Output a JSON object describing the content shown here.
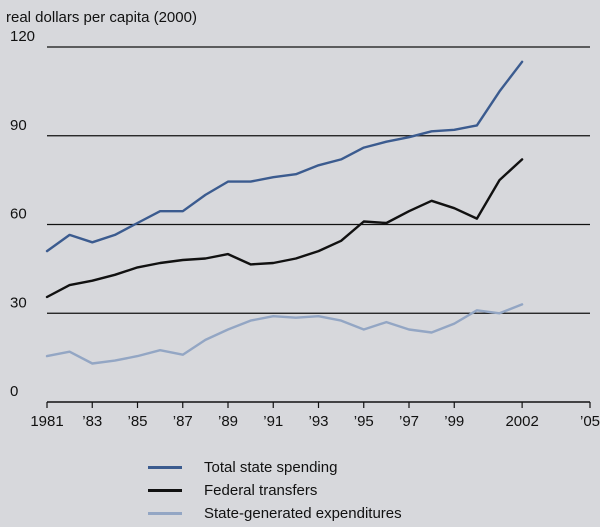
{
  "colors": {
    "total": "#3b5b8f",
    "federal": "#111111",
    "state": "#93a6c4",
    "grid": "#111111",
    "background": "#d7d8dc"
  },
  "chart_data": {
    "type": "line",
    "ylabel": "real dollars per capita (2000)",
    "ylim": [
      0,
      120
    ],
    "y_ticks": [
      0,
      30,
      60,
      90,
      120
    ],
    "y_tick_labels": [
      "0",
      "30",
      "60",
      "90",
      "120"
    ],
    "xlim": [
      1981,
      2005
    ],
    "x_ticks": [
      1981,
      1983,
      1985,
      1987,
      1989,
      1991,
      1993,
      1995,
      1997,
      1999,
      2002,
      2005
    ],
    "x_tick_labels": [
      "1981",
      "’83",
      "’85",
      "’87",
      "’89",
      "’91",
      "’93",
      "’95",
      "’97",
      "’99",
      "2002",
      "’05"
    ],
    "grid": "horizontal",
    "legend_position": "bottom",
    "x": [
      1981,
      1982,
      1983,
      1984,
      1985,
      1986,
      1987,
      1988,
      1989,
      1990,
      1991,
      1992,
      1993,
      1994,
      1995,
      1996,
      1997,
      1998,
      1999,
      2000,
      2001,
      2002
    ],
    "series": [
      {
        "key": "total",
        "name": "Total state spending",
        "values": [
          51,
          56.5,
          54,
          56.5,
          60.5,
          64.5,
          64.5,
          70,
          74.5,
          74.5,
          76,
          77,
          80,
          82,
          86,
          88,
          89.5,
          91.5,
          92,
          93.5,
          105,
          115
        ]
      },
      {
        "key": "federal",
        "name": "Federal transfers",
        "values": [
          35.5,
          39.5,
          41,
          43,
          45.5,
          47,
          48,
          48.5,
          50,
          46.5,
          47,
          48.5,
          51,
          54.5,
          61,
          60.5,
          64.5,
          68,
          65.5,
          62,
          75,
          82
        ]
      },
      {
        "key": "state",
        "name": "State-generated expenditures",
        "values": [
          15.5,
          17,
          13,
          14,
          15.5,
          17.5,
          16,
          21,
          24.5,
          27.5,
          29,
          28.5,
          29,
          27.5,
          24.5,
          27,
          24.5,
          23.5,
          26.5,
          31,
          30,
          33
        ]
      }
    ]
  }
}
